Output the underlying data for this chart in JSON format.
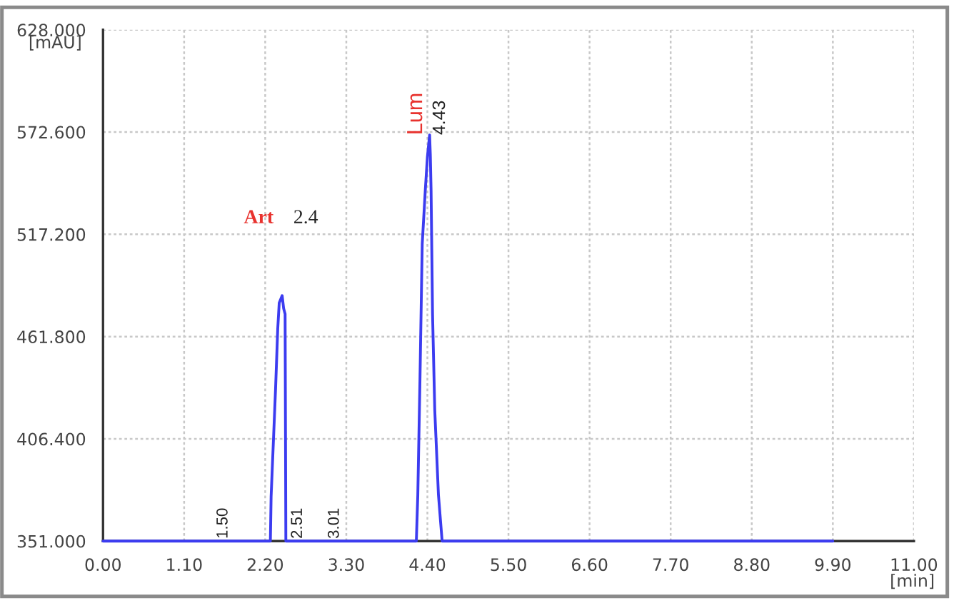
{
  "chart_data": {
    "type": "line",
    "xlabel": "[min]",
    "ylabel": "[mAU]",
    "series": [
      {
        "color": "#3c3cf0",
        "x": [
          0.0,
          2.27,
          2.28,
          2.34,
          2.37,
          2.39,
          2.43,
          2.45,
          2.47,
          2.48,
          4.25,
          4.27,
          4.3,
          4.33,
          4.37,
          4.4,
          4.43,
          4.44,
          4.45,
          4.47,
          4.5,
          4.55,
          4.6,
          9.9
        ],
        "values": [
          351,
          351,
          375,
          433,
          466,
          480,
          484,
          477,
          474,
          351,
          351,
          376,
          440,
          512,
          540,
          559,
          571,
          560,
          541,
          474,
          422,
          376,
          351,
          351
        ]
      }
    ],
    "xlim": [
      0,
      11
    ],
    "ylim": [
      351,
      628
    ],
    "xticks": [
      {
        "value": 0,
        "label": "0.00"
      },
      {
        "value": 1.1,
        "label": "1.10"
      },
      {
        "value": 2.2,
        "label": "2.20"
      },
      {
        "value": 3.3,
        "label": "3.30"
      },
      {
        "value": 4.4,
        "label": "4.40"
      },
      {
        "value": 5.5,
        "label": "5.50"
      },
      {
        "value": 6.6,
        "label": "6.60"
      },
      {
        "value": 7.7,
        "label": "7.70"
      },
      {
        "value": 8.8,
        "label": "8.80"
      },
      {
        "value": 9.9,
        "label": "9.90"
      },
      {
        "value": 11,
        "label": "11.00"
      }
    ],
    "yticks": [
      {
        "value": 351,
        "label": "351.000"
      },
      {
        "value": 406.4,
        "label": "406.400"
      },
      {
        "value": 461.8,
        "label": "461.800"
      },
      {
        "value": 517.2,
        "label": "517.200"
      },
      {
        "value": 572.6,
        "label": "572.600"
      },
      {
        "value": 628,
        "label": "628.000"
      }
    ],
    "grid": true,
    "marker": "none",
    "line_style": "solid",
    "annotations": [
      {
        "text": "1.50",
        "x": 1.5,
        "y": 351
      },
      "Art",
      "2.4",
      {
        "text": "2.51",
        "x": 2.51,
        "y": 351
      },
      {
        "text": "3.01",
        "x": 3.01,
        "y": 351
      },
      {
        "text": "Lum",
        "x": 4.43,
        "y": 571
      },
      {
        "text": "4.43",
        "x": 4.43,
        "y": 571
      }
    ]
  }
}
